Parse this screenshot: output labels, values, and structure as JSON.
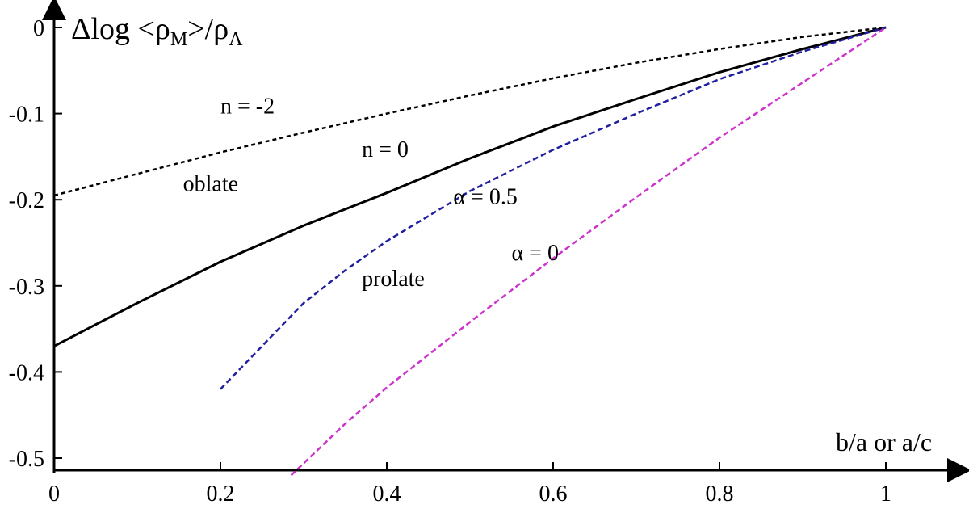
{
  "chart_data": {
    "type": "line",
    "title": "",
    "ylabel": "Δlog <ρM>/ρΛ",
    "ylabel_parts": {
      "prefix": "Δlog <ρ",
      "sub1": "M",
      "mid": ">/ρ",
      "sub2": "Λ"
    },
    "xlabel": "b/a or a/c",
    "xlim": [
      0,
      1.1
    ],
    "ylim": [
      -0.52,
      0.02
    ],
    "grid": false,
    "xticks": [
      0,
      0.2,
      0.4,
      0.6,
      0.8,
      1
    ],
    "xtick_labels": [
      "0",
      "0.2",
      "0.4",
      "0.6",
      "0.8",
      "1"
    ],
    "yticks": [
      0,
      -0.1,
      -0.2,
      -0.3,
      -0.4,
      -0.5
    ],
    "ytick_labels": [
      "0",
      "-0.1",
      "-0.2",
      "-0.3",
      "-0.4",
      "-0.5"
    ],
    "series": [
      {
        "key": "n-neg2",
        "color": "#000000",
        "dash": "short",
        "points": [
          [
            0,
            -0.195
          ],
          [
            0.1,
            -0.17
          ],
          [
            0.2,
            -0.145
          ],
          [
            0.3,
            -0.122
          ],
          [
            0.4,
            -0.1
          ],
          [
            0.5,
            -0.079
          ],
          [
            0.6,
            -0.059
          ],
          [
            0.7,
            -0.041
          ],
          [
            0.8,
            -0.025
          ],
          [
            0.9,
            -0.011
          ],
          [
            1.0,
            0
          ]
        ]
      },
      {
        "key": "n-0",
        "color": "#000000",
        "dash": "solid",
        "points": [
          [
            0,
            -0.37
          ],
          [
            0.1,
            -0.32
          ],
          [
            0.2,
            -0.272
          ],
          [
            0.3,
            -0.23
          ],
          [
            0.4,
            -0.192
          ],
          [
            0.5,
            -0.152
          ],
          [
            0.6,
            -0.115
          ],
          [
            0.7,
            -0.083
          ],
          [
            0.8,
            -0.052
          ],
          [
            0.9,
            -0.025
          ],
          [
            1.0,
            0
          ]
        ]
      },
      {
        "key": "alpha-0.5",
        "color": "#1f1fa0",
        "dash": "dashed",
        "points": [
          [
            0.2,
            -0.42
          ],
          [
            0.25,
            -0.37
          ],
          [
            0.3,
            -0.32
          ],
          [
            0.35,
            -0.282
          ],
          [
            0.4,
            -0.248
          ],
          [
            0.5,
            -0.19
          ],
          [
            0.6,
            -0.142
          ],
          [
            0.7,
            -0.1
          ],
          [
            0.8,
            -0.06
          ],
          [
            0.9,
            -0.028
          ],
          [
            1.0,
            0
          ]
        ]
      },
      {
        "key": "alpha-0",
        "color": "#cc33cc",
        "dash": "dashed",
        "points": [
          [
            0.285,
            -0.52
          ],
          [
            0.35,
            -0.46
          ],
          [
            0.4,
            -0.418
          ],
          [
            0.5,
            -0.342
          ],
          [
            0.6,
            -0.268
          ],
          [
            0.7,
            -0.197
          ],
          [
            0.8,
            -0.128
          ],
          [
            0.9,
            -0.064
          ],
          [
            1.0,
            0
          ]
        ]
      }
    ],
    "annotations": [
      {
        "key": "n-neg2",
        "text": "n = -2",
        "x": 0.2,
        "y": -0.1
      },
      {
        "key": "n-0",
        "text": "n = 0",
        "x": 0.37,
        "y": -0.15
      },
      {
        "key": "oblate",
        "text": "oblate",
        "x": 0.155,
        "y": -0.19
      },
      {
        "key": "alpha-0.5",
        "text": "α = 0.5",
        "x": 0.48,
        "y": -0.205
      },
      {
        "key": "prolate",
        "text": "prolate",
        "x": 0.37,
        "y": -0.3
      },
      {
        "key": "alpha-0",
        "text": "α = 0",
        "x": 0.55,
        "y": -0.27
      }
    ]
  }
}
